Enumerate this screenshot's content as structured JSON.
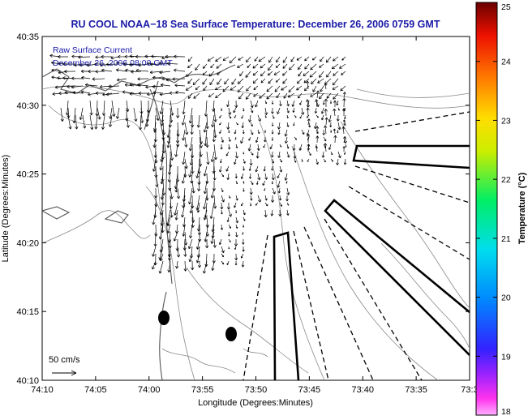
{
  "title": "RU COOL  NOAA−18  Sea Surface Temperature:  December 26, 2006 0759 GMT",
  "annotation": {
    "line1": "Raw Surface Current",
    "line2": "December 26, 2006 08:00 GMT"
  },
  "scale_label": "50 cm/s",
  "axes": {
    "xlabel": "Longitude (Degrees:Minutes)",
    "ylabel": "Latitude (Degrees:Minutes)",
    "x_ticks": [
      "74:10",
      "74:05",
      "74:00",
      "73:55",
      "73:50",
      "73:45",
      "73:40",
      "73:35",
      "73:3"
    ],
    "y_ticks": [
      "40:10",
      "40:15",
      "40:20",
      "40:25",
      "40:30",
      "40:35"
    ]
  },
  "colorbar": {
    "label": "Temperature (°C)",
    "ticks": [
      "18",
      "19",
      "20",
      "21",
      "22",
      "23",
      "24",
      "25"
    ],
    "range": [
      18,
      25
    ],
    "colors": [
      "#ff33ee",
      "#3322ff",
      "#00ccff",
      "#00ee66",
      "#ccee00",
      "#ffcc00",
      "#ff5500",
      "#cc0000",
      "#6a0000"
    ]
  },
  "style": {
    "title_color": "#1a1aa8",
    "annotation_color": "#1a1aa8",
    "line_color": "#000000",
    "contour_color": "#888888"
  }
}
